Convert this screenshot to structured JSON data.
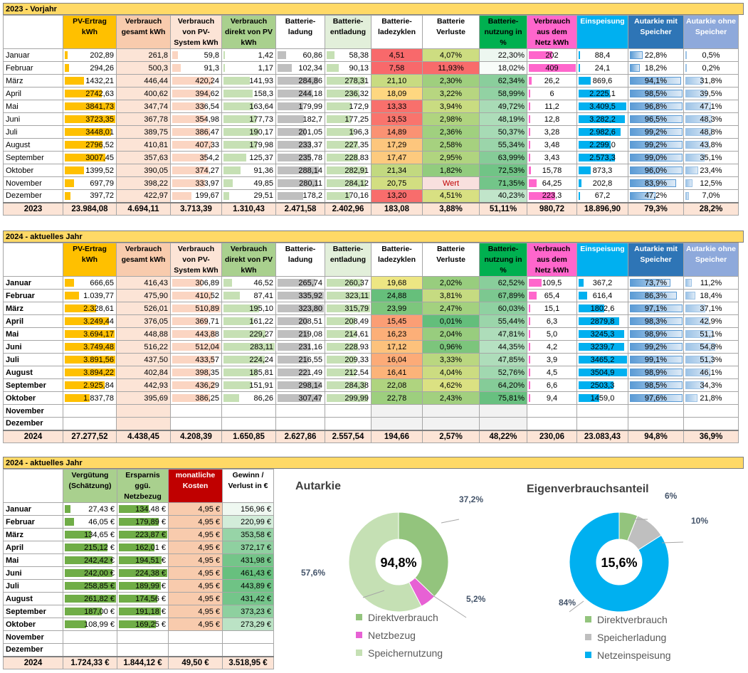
{
  "colors": {
    "orange": "#ffc000",
    "pink": "#f8cbad",
    "peach": "#fce4d6",
    "green": "#a9d08e",
    "lightgreen": "#e2efda",
    "darkgreen": "#00b050",
    "magenta": "#ff66cc",
    "cyan": "#00b0f0",
    "blue": "#2e75b6",
    "lightblue": "#8ea9db",
    "red": "#c00000",
    "title_bg": "#ffd966"
  },
  "headers": {
    "pv": "PV-Ertrag kWh",
    "vg": "Verbrauch gesamt kWh",
    "vs": "Verbrauch von PV-System kWh",
    "vd": "Verbrauch direkt von PV kWh",
    "bl": "Batterie-ladung",
    "be": "Batterie-entladung",
    "bz": "Batterie-ladezyklen",
    "bv": "Batterie Verluste",
    "bn": "Batterie-nutzung in %",
    "vn": "Verbrauch aus dem Netz kWh",
    "es": "Einspeisung",
    "am": "Autarkie mit Speicher",
    "ao": "Autarkie ohne Speicher"
  },
  "t2023": {
    "title": "2023 - Vorjahr",
    "rows": [
      {
        "m": "Januar",
        "pv": "202,89",
        "vg": "261,8",
        "vs": "59,8",
        "vd": "1,42",
        "bl": "60,86",
        "be": "58,38",
        "bz": "4,51",
        "bv": "4,07%",
        "bn": "22,30%",
        "vn": "202",
        "es": "88,4",
        "am": "22,8%",
        "ao": "0,5%"
      },
      {
        "m": "Februar",
        "pv": "294,26",
        "vg": "500,3",
        "vs": "91,3",
        "vd": "1,17",
        "bl": "102,34",
        "be": "90,13",
        "bz": "7,58",
        "bv": "11,93%",
        "bn": "18,02%",
        "vn": "409",
        "es": "24,1",
        "am": "18,2%",
        "ao": "0,2%"
      },
      {
        "m": "März",
        "pv": "1432,21",
        "vg": "446,44",
        "vs": "420,24",
        "vd": "141,93",
        "bl": "284,86",
        "be": "278,31",
        "bz": "21,10",
        "bv": "2,30%",
        "bn": "62,34%",
        "vn": "26,2",
        "es": "869,6",
        "am": "94,1%",
        "ao": "31,8%"
      },
      {
        "m": "April",
        "pv": "2742,63",
        "vg": "400,62",
        "vs": "394,62",
        "vd": "158,3",
        "bl": "244,18",
        "be": "236,32",
        "bz": "18,09",
        "bv": "3,22%",
        "bn": "58,99%",
        "vn": "6",
        "es": "2.225,1",
        "am": "98,5%",
        "ao": "39,5%"
      },
      {
        "m": "Mai",
        "pv": "3841,73",
        "vg": "347,74",
        "vs": "336,54",
        "vd": "163,64",
        "bl": "179,99",
        "be": "172,9",
        "bz": "13,33",
        "bv": "3,94%",
        "bn": "49,72%",
        "vn": "11,2",
        "es": "3.409,5",
        "am": "96,8%",
        "ao": "47,1%"
      },
      {
        "m": "Juni",
        "pv": "3723,35",
        "vg": "367,78",
        "vs": "354,98",
        "vd": "177,73",
        "bl": "182,7",
        "be": "177,25",
        "bz": "13,53",
        "bv": "2,98%",
        "bn": "48,19%",
        "vn": "12,8",
        "es": "3.282,2",
        "am": "96,5%",
        "ao": "48,3%"
      },
      {
        "m": "Juli",
        "pv": "3448,01",
        "vg": "389,75",
        "vs": "386,47",
        "vd": "190,17",
        "bl": "201,05",
        "be": "196,3",
        "bz": "14,89",
        "bv": "2,36%",
        "bn": "50,37%",
        "vn": "3,28",
        "es": "2.982,6",
        "am": "99,2%",
        "ao": "48,8%"
      },
      {
        "m": "August",
        "pv": "2796,52",
        "vg": "410,81",
        "vs": "407,33",
        "vd": "179,98",
        "bl": "233,37",
        "be": "227,35",
        "bz": "17,29",
        "bv": "2,58%",
        "bn": "55,34%",
        "vn": "3,48",
        "es": "2.299,0",
        "am": "99,2%",
        "ao": "43,8%"
      },
      {
        "m": "September",
        "pv": "3007,45",
        "vg": "357,63",
        "vs": "354,2",
        "vd": "125,37",
        "bl": "235,78",
        "be": "228,83",
        "bz": "17,47",
        "bv": "2,95%",
        "bn": "63,99%",
        "vn": "3,43",
        "es": "2.573,3",
        "am": "99,0%",
        "ao": "35,1%"
      },
      {
        "m": "Oktober",
        "pv": "1399,52",
        "vg": "390,05",
        "vs": "374,27",
        "vd": "91,36",
        "bl": "288,14",
        "be": "282,91",
        "bz": "21,34",
        "bv": "1,82%",
        "bn": "72,53%",
        "vn": "15,78",
        "es": "873,3",
        "am": "96,0%",
        "ao": "23,4%"
      },
      {
        "m": "November",
        "pv": "697,79",
        "vg": "398,22",
        "vs": "333,97",
        "vd": "49,85",
        "bl": "280,11",
        "be": "284,12",
        "bz": "20,75",
        "bv": "Wert",
        "bn": "71,35%",
        "vn": "64,25",
        "es": "202,8",
        "am": "83,9%",
        "ao": "12,5%"
      },
      {
        "m": "Dezember",
        "pv": "397,72",
        "vg": "422,97",
        "vs": "199,67",
        "vd": "29,51",
        "bl": "178,2",
        "be": "170,16",
        "bz": "13,20",
        "bv": "4,51%",
        "bn": "40,23%",
        "vn": "223,3",
        "es": "67,2",
        "am": "47,2%",
        "ao": "7,0%"
      }
    ],
    "total": {
      "m": "2023",
      "pv": "23.984,08",
      "vg": "4.694,11",
      "vs": "3.713,39",
      "vd": "1.310,43",
      "bl": "2.471,58",
      "be": "2.402,96",
      "bz": "183,08",
      "bv": "3,88%",
      "bn": "51,11%",
      "vn": "980,72",
      "es": "18.896,90",
      "am": "79,3%",
      "ao": "28,2%"
    }
  },
  "t2024": {
    "title": "2024 - aktuelles Jahr",
    "rows": [
      {
        "m": "Januar",
        "pv": "666,65",
        "vg": "416,43",
        "vs": "306,89",
        "vd": "46,52",
        "bl": "265,74",
        "be": "260,37",
        "bz": "19,68",
        "bv": "2,02%",
        "bn": "62,52%",
        "vn": "109,5",
        "es": "367,2",
        "am": "73,7%",
        "ao": "11,2%"
      },
      {
        "m": "Februar",
        "pv": "1.039,77",
        "vg": "475,90",
        "vs": "410,52",
        "vd": "87,41",
        "bl": "335,92",
        "be": "323,11",
        "bz": "24,88",
        "bv": "3,81%",
        "bn": "67,89%",
        "vn": "65,4",
        "es": "616,4",
        "am": "86,3%",
        "ao": "18,4%"
      },
      {
        "m": "März",
        "pv": "2.328,61",
        "vg": "526,01",
        "vs": "510,89",
        "vd": "195,10",
        "bl": "323,80",
        "be": "315,79",
        "bz": "23,99",
        "bv": "2,47%",
        "bn": "60,03%",
        "vn": "15,1",
        "es": "1802,6",
        "am": "97,1%",
        "ao": "37,1%"
      },
      {
        "m": "April",
        "pv": "3.249,44",
        "vg": "376,05",
        "vs": "369,71",
        "vd": "161,22",
        "bl": "208,51",
        "be": "208,49",
        "bz": "15,45",
        "bv": "0,01%",
        "bn": "55,44%",
        "vn": "6,3",
        "es": "2879,8",
        "am": "98,3%",
        "ao": "42,9%"
      },
      {
        "m": "Mai",
        "pv": "3.694,17",
        "vg": "448,88",
        "vs": "443,88",
        "vd": "229,27",
        "bl": "219,08",
        "be": "214,61",
        "bz": "16,23",
        "bv": "2,04%",
        "bn": "47,81%",
        "vn": "5,0",
        "es": "3245,3",
        "am": "98,9%",
        "ao": "51,1%"
      },
      {
        "m": "Juni",
        "pv": "3.749,48",
        "vg": "516,22",
        "vs": "512,04",
        "vd": "283,11",
        "bl": "231,16",
        "be": "228,93",
        "bz": "17,12",
        "bv": "0,96%",
        "bn": "44,35%",
        "vn": "4,2",
        "es": "3239,7",
        "am": "99,2%",
        "ao": "54,8%"
      },
      {
        "m": "Juli",
        "pv": "3.891,56",
        "vg": "437,50",
        "vs": "433,57",
        "vd": "224,24",
        "bl": "216,55",
        "be": "209,33",
        "bz": "16,04",
        "bv": "3,33%",
        "bn": "47,85%",
        "vn": "3,9",
        "es": "3465,2",
        "am": "99,1%",
        "ao": "51,3%"
      },
      {
        "m": "August",
        "pv": "3.894,22",
        "vg": "402,84",
        "vs": "398,35",
        "vd": "185,81",
        "bl": "221,49",
        "be": "212,54",
        "bz": "16,41",
        "bv": "4,04%",
        "bn": "52,76%",
        "vn": "4,5",
        "es": "3504,9",
        "am": "98,9%",
        "ao": "46,1%"
      },
      {
        "m": "September",
        "pv": "2.925,84",
        "vg": "442,93",
        "vs": "436,29",
        "vd": "151,91",
        "bl": "298,14",
        "be": "284,38",
        "bz": "22,08",
        "bv": "4,62%",
        "bn": "64,20%",
        "vn": "6,6",
        "es": "2503,3",
        "am": "98,5%",
        "ao": "34,3%"
      },
      {
        "m": "Oktober",
        "pv": "1.837,78",
        "vg": "395,69",
        "vs": "386,25",
        "vd": "86,26",
        "bl": "307,47",
        "be": "299,99",
        "bz": "22,78",
        "bv": "2,43%",
        "bn": "75,81%",
        "vn": "9,4",
        "es": "1459,0",
        "am": "97,6%",
        "ao": "21,8%"
      },
      {
        "m": "November",
        "pv": "",
        "vg": "",
        "vs": "",
        "vd": "",
        "bl": "",
        "be": "",
        "bz": "",
        "bv": "",
        "bn": "",
        "vn": "",
        "es": "",
        "am": "",
        "ao": ""
      },
      {
        "m": "Dezember",
        "pv": "",
        "vg": "",
        "vs": "",
        "vd": "",
        "bl": "",
        "be": "",
        "bz": "",
        "bv": "",
        "bn": "",
        "vn": "",
        "es": "",
        "am": "",
        "ao": ""
      }
    ],
    "total": {
      "m": "2024",
      "pv": "27.277,52",
      "vg": "4.438,45",
      "vs": "4.208,39",
      "vd": "1.650,85",
      "bl": "2.627,86",
      "be": "2.557,54",
      "bz": "194,66",
      "bv": "2,57%",
      "bn": "48,22%",
      "vn": "230,06",
      "es": "23.083,43",
      "am": "94,8%",
      "ao": "36,9%"
    }
  },
  "fin": {
    "title": "2024 - aktuelles Jahr",
    "headers": {
      "vg": "Vergütung (Schätzung)",
      "er": "Ersparnis ggü. Netzbezug",
      "mk": "monatliche Kosten",
      "gv": "Gewinn / Verlust in €"
    },
    "rows": [
      {
        "m": "Januar",
        "vg": "27,43 €",
        "er": "134,48 €",
        "mk": "4,95 €",
        "gv": "156,96 €"
      },
      {
        "m": "Februar",
        "vg": "46,05 €",
        "er": "179,89 €",
        "mk": "4,95 €",
        "gv": "220,99 €"
      },
      {
        "m": "März",
        "vg": "134,65 €",
        "er": "223,87 €",
        "mk": "4,95 €",
        "gv": "353,58 €"
      },
      {
        "m": "April",
        "vg": "215,12 €",
        "er": "162,01 €",
        "mk": "4,95 €",
        "gv": "372,17 €"
      },
      {
        "m": "Mai",
        "vg": "242,42 €",
        "er": "194,51 €",
        "mk": "4,95 €",
        "gv": "431,98 €"
      },
      {
        "m": "Juni",
        "vg": "242,00 €",
        "er": "224,38 €",
        "mk": "4,95 €",
        "gv": "461,43 €"
      },
      {
        "m": "Juli",
        "vg": "258,85 €",
        "er": "189,99 €",
        "mk": "4,95 €",
        "gv": "443,89 €"
      },
      {
        "m": "August",
        "vg": "261,82 €",
        "er": "174,56 €",
        "mk": "4,95 €",
        "gv": "431,42 €"
      },
      {
        "m": "September",
        "vg": "187,00 €",
        "er": "191,18 €",
        "mk": "4,95 €",
        "gv": "373,23 €"
      },
      {
        "m": "Oktober",
        "vg": "108,99 €",
        "er": "169,25 €",
        "mk": "4,95 €",
        "gv": "273,29 €"
      },
      {
        "m": "November",
        "vg": "",
        "er": "",
        "mk": "",
        "gv": ""
      },
      {
        "m": "Dezember",
        "vg": "",
        "er": "",
        "mk": "",
        "gv": ""
      }
    ],
    "total": {
      "m": "2024",
      "vg": "1.724,33 €",
      "er": "1.844,12 €",
      "mk": "49,50 €",
      "gv": "3.518,95 €"
    }
  },
  "chart_data": [
    {
      "type": "pie",
      "title": "Autarkie",
      "center_label": "94,8%",
      "categories": [
        "Direktverbrauch",
        "Netzbezug",
        "Speichernutzung"
      ],
      "values": [
        37.2,
        5.2,
        57.6
      ],
      "labels": [
        "37,2%",
        "5,2%",
        "57,6%"
      ],
      "colors": [
        "#93c47d",
        "#e761d4",
        "#c5e0b4"
      ],
      "legend": "bottom"
    },
    {
      "type": "pie",
      "title": "Eigenverbrauchsanteil",
      "center_label": "15,6%",
      "categories": [
        "Direktverbrauch",
        "Speicherladung",
        "Netzeinspeisung"
      ],
      "values": [
        6,
        10,
        84
      ],
      "labels": [
        "6%",
        "10%",
        "84%"
      ],
      "colors": [
        "#93c47d",
        "#bfbfbf",
        "#00b0f0"
      ],
      "legend": "bottom"
    }
  ]
}
